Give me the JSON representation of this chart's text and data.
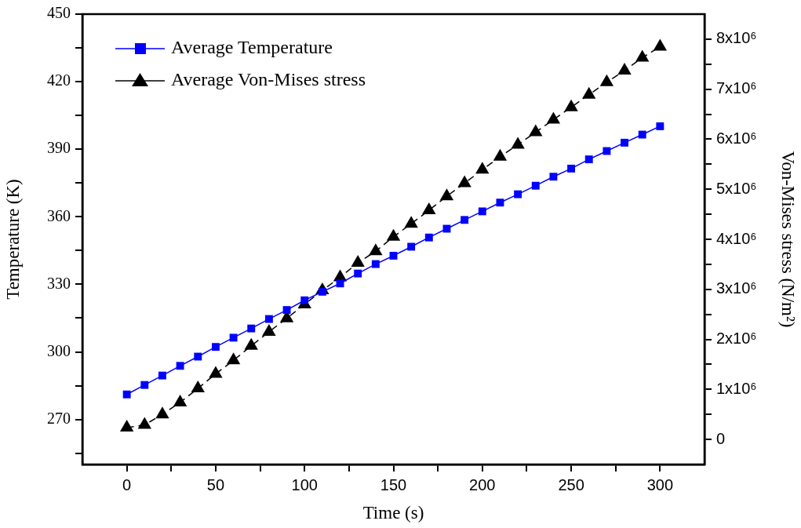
{
  "chart_data": {
    "type": "line",
    "xlabel": "Time (s)",
    "ylabel": "Temperature (K)",
    "y2label": "Von-Mises stress (N/m²)",
    "legend": "top left",
    "x": [
      0,
      10,
      20,
      30,
      40,
      50,
      60,
      70,
      80,
      90,
      100,
      110,
      120,
      130,
      140,
      150,
      160,
      170,
      180,
      190,
      200,
      210,
      220,
      230,
      240,
      250,
      260,
      270,
      280,
      290,
      300
    ],
    "xlim": [
      -25,
      325
    ],
    "xticks": [
      0,
      {
        "value": 25,
        "label": null
      },
      50,
      {
        "value": 75,
        "label": null
      },
      100,
      {
        "value": 125,
        "label": null
      },
      150,
      {
        "value": 175,
        "label": null
      },
      200,
      {
        "value": 225,
        "label": null
      },
      250,
      {
        "value": 275,
        "label": null
      },
      300
    ],
    "ylim": [
      250,
      450
    ],
    "yticks": [
      {
        "value": 255,
        "label": null
      },
      270,
      {
        "value": 285,
        "label": null
      },
      300,
      {
        "value": 315,
        "label": null
      },
      330,
      {
        "value": 345,
        "label": null
      },
      360,
      {
        "value": 375,
        "label": null
      },
      390,
      {
        "value": 405,
        "label": null
      },
      420,
      {
        "value": 435,
        "label": null
      },
      450
    ],
    "y2lim": [
      -500000,
      8500000
    ],
    "y2ticks": [
      0,
      {
        "value": 500000,
        "label": null
      },
      {
        "value": 1000000,
        "label": "1x10⁶"
      },
      {
        "value": 1500000,
        "label": null
      },
      {
        "value": 2000000,
        "label": "2x10⁶"
      },
      {
        "value": 2500000,
        "label": null
      },
      {
        "value": 3000000,
        "label": "3x10⁶"
      },
      {
        "value": 3500000,
        "label": null
      },
      {
        "value": 4000000,
        "label": "4x10⁶"
      },
      {
        "value": 4500000,
        "label": null
      },
      {
        "value": 5000000,
        "label": "5x10⁶"
      },
      {
        "value": 5500000,
        "label": null
      },
      {
        "value": 6000000,
        "label": "6x10⁶"
      },
      {
        "value": 6500000,
        "label": null
      },
      {
        "value": 7000000,
        "label": "7x10⁶"
      },
      {
        "value": 7500000,
        "label": null
      },
      {
        "value": 8000000,
        "label": "8x10⁶"
      }
    ],
    "series": [
      {
        "name": "Average Temperature",
        "color": "#0000ff",
        "marker": "square",
        "line_style": "solid",
        "values": [
          281.1,
          285.3,
          289.5,
          293.8,
          297.9,
          302.2,
          306.3,
          310.4,
          314.6,
          318.6,
          322.9,
          326.7,
          330.4,
          334.8,
          339.0,
          342.7,
          346.7,
          350.8,
          354.7,
          358.6,
          362.4,
          366.3,
          370.0,
          373.8,
          377.8,
          381.4,
          385.5,
          389.2,
          392.9,
          396.5,
          400.2
        ]
      },
      {
        "name": "Average Von-Mises stress",
        "color": "#000000",
        "marker": "triangle",
        "line_style": "dashed",
        "axis": "y2",
        "values": [
          235000,
          290000,
          500000,
          740000,
          1020000,
          1310000,
          1580000,
          1870000,
          2150000,
          2420000,
          2700000,
          2980000,
          3240000,
          3530000,
          3760000,
          4050000,
          4310000,
          4580000,
          4860000,
          5120000,
          5390000,
          5650000,
          5890000,
          6140000,
          6390000,
          6640000,
          6890000,
          7140000,
          7370000,
          7630000,
          7850000
        ]
      }
    ]
  }
}
